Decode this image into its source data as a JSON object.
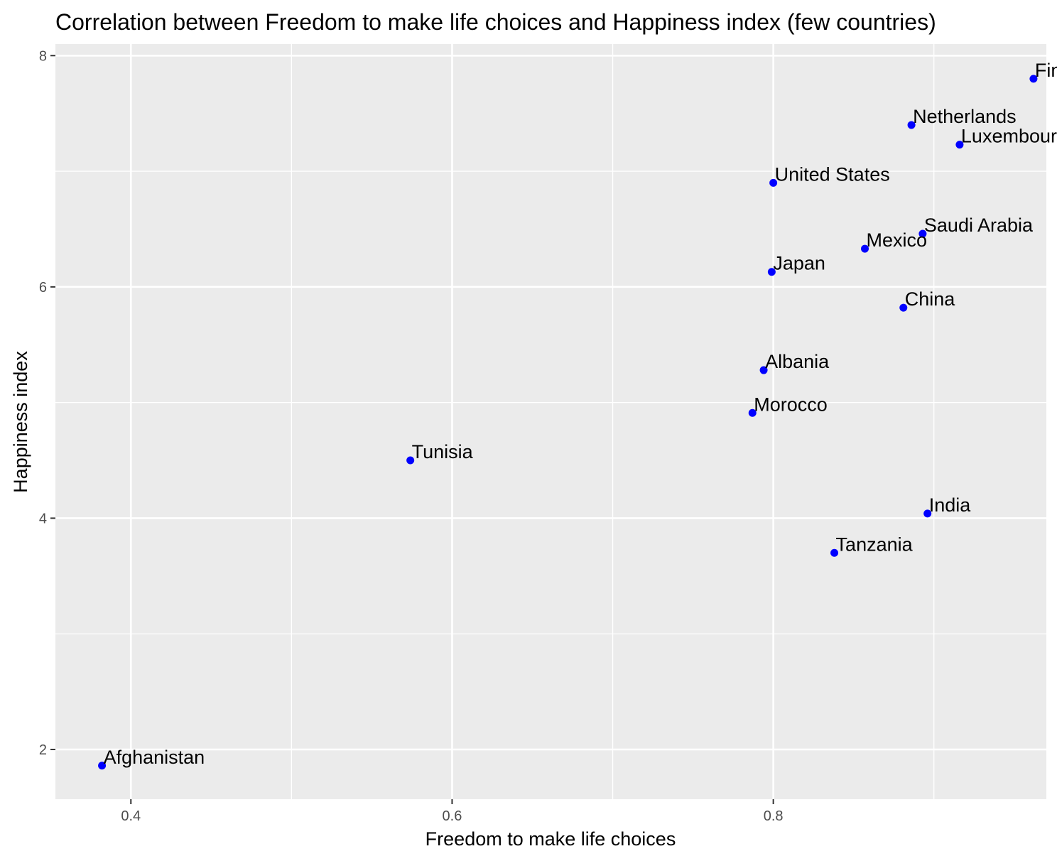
{
  "chart_data": {
    "type": "scatter",
    "title": "Correlation between Freedom to make life choices and Happiness index (few countries)",
    "xlabel": "Freedom to make life choices",
    "ylabel": "Happiness index",
    "xlim": [
      0.353,
      0.97
    ],
    "ylim": [
      1.57,
      8.1
    ],
    "x_ticks": [
      0.4,
      0.6,
      0.8
    ],
    "y_ticks": [
      2,
      4,
      6,
      8
    ],
    "x_tick_labels": [
      "0.4",
      "0.6",
      "0.8"
    ],
    "y_tick_labels": [
      "2",
      "4",
      "6",
      "8"
    ],
    "x_minor_grid": [
      0.5,
      0.7,
      0.9
    ],
    "y_minor_grid": [
      3,
      5,
      7
    ],
    "grid": true,
    "point_color": "#0000ff",
    "panel_background": "#ebebeb",
    "grid_color": "#ffffff",
    "points": [
      {
        "label": "Finla",
        "x": 0.962,
        "y": 7.8
      },
      {
        "label": "Netherlands",
        "x": 0.886,
        "y": 7.4
      },
      {
        "label": "Luxembourg",
        "x": 0.916,
        "y": 7.23
      },
      {
        "label": "United States",
        "x": 0.8,
        "y": 6.9
      },
      {
        "label": "Saudi Arabia",
        "x": 0.893,
        "y": 6.46
      },
      {
        "label": "Mexico",
        "x": 0.857,
        "y": 6.33
      },
      {
        "label": "Japan",
        "x": 0.799,
        "y": 6.13
      },
      {
        "label": "China",
        "x": 0.881,
        "y": 5.82
      },
      {
        "label": "Albania",
        "x": 0.794,
        "y": 5.28
      },
      {
        "label": "Morocco",
        "x": 0.787,
        "y": 4.91
      },
      {
        "label": "Tunisia",
        "x": 0.574,
        "y": 4.5
      },
      {
        "label": "India",
        "x": 0.896,
        "y": 4.04
      },
      {
        "label": "Tanzania",
        "x": 0.838,
        "y": 3.7
      },
      {
        "label": "Afghanistan",
        "x": 0.382,
        "y": 1.86
      }
    ]
  }
}
